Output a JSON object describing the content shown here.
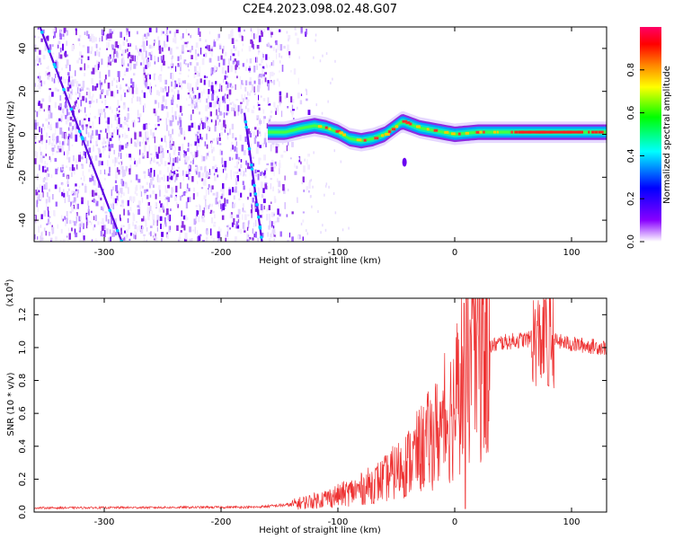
{
  "title": "C2E4.2023.098.02.48.G07",
  "chart_data": [
    {
      "type": "heatmap",
      "name": "spectrogram",
      "xlabel": "Height of straight line (km)",
      "ylabel": "Frequency (Hz)",
      "xlim": [
        -360,
        130
      ],
      "ylim": [
        -50,
        50
      ],
      "xticks": [
        -300,
        -200,
        -100,
        0,
        100
      ],
      "yticks": [
        -40,
        -20,
        0,
        20,
        40
      ],
      "colorbar": {
        "label": "Normalized spectral amplitude",
        "range": [
          0,
          1
        ],
        "ticks": [
          "0.0",
          "0.2",
          "0.4",
          "0.6",
          "0.8"
        ],
        "tick_values": [
          0.0,
          0.2,
          0.4,
          0.6,
          0.8
        ],
        "colors": [
          "#ffffff",
          "#8800ff",
          "#0000ff",
          "#00ffff",
          "#00ff00",
          "#ffff00",
          "#ff8800",
          "#ff0000",
          "#ff0066"
        ]
      },
      "main_signal": {
        "x": [
          -160,
          -145,
          -130,
          -120,
          -110,
          -100,
          -90,
          -80,
          -70,
          -60,
          -50,
          -45,
          -40,
          -30,
          -20,
          -10,
          0,
          20,
          40,
          60,
          80,
          100,
          130
        ],
        "freq": [
          1,
          1,
          3,
          4,
          3,
          1,
          -2,
          -3,
          -2,
          0,
          4,
          6,
          5,
          3,
          2,
          1,
          0,
          1,
          1,
          1,
          1,
          1,
          1
        ]
      },
      "doppler_tracks": [
        {
          "x0": -355,
          "f0": 50,
          "x1": -285,
          "f1": -50
        },
        {
          "x0": -180,
          "f0": 10,
          "x1": -165,
          "f1": -50
        }
      ],
      "noise_region": [
        -360,
        -150
      ]
    },
    {
      "type": "line",
      "name": "snr",
      "xlabel": "Height of straight line (km)",
      "ylabel": "SNR (10 * v/v)",
      "ylabel_scale": "(x10",
      "ylabel_scale_exp": "4",
      "ylabel_scale_close": ")",
      "xlim": [
        -360,
        130
      ],
      "ylim": [
        0,
        13000
      ],
      "xticks": [
        -300,
        -200,
        -100,
        0,
        100
      ],
      "yticks": [
        "0.0",
        "0.2",
        "0.4",
        "0.6",
        "0.8",
        "1.0",
        "1.2"
      ],
      "ytick_values": [
        0,
        2000,
        4000,
        6000,
        8000,
        10000,
        12000
      ],
      "color": "#ee3333",
      "envelope": {
        "x": [
          -360,
          -170,
          -140,
          -120,
          -100,
          -80,
          -60,
          -40,
          -20,
          -10,
          0,
          5,
          10,
          20,
          40,
          60,
          80,
          100,
          130
        ],
        "y": [
          250,
          300,
          450,
          700,
          1000,
          1400,
          2000,
          3000,
          4500,
          5200,
          6500,
          8000,
          8500,
          9800,
          10300,
          10500,
          10500,
          10200,
          10000
        ]
      }
    }
  ]
}
